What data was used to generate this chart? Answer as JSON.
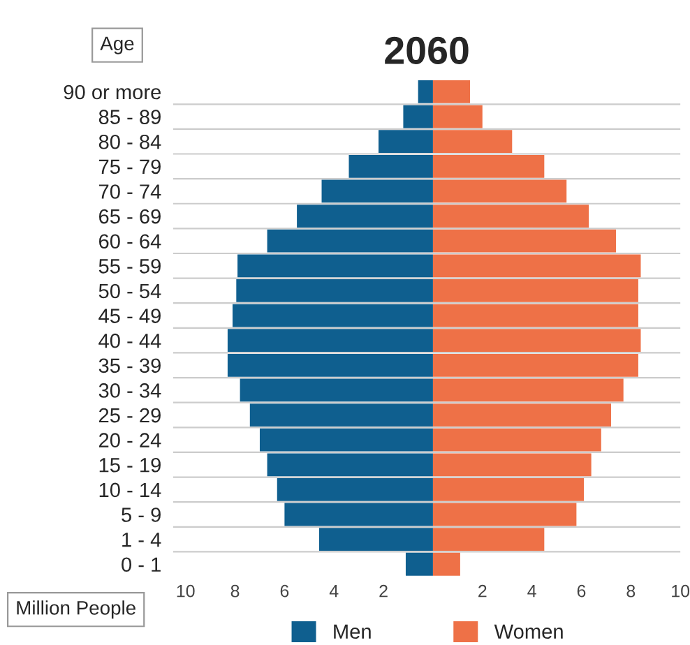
{
  "chart_data": {
    "type": "bar",
    "orientation": "horizontal",
    "stacked": true,
    "title": "2060",
    "ylabel": "Age",
    "xlabel": "Million People",
    "categories": [
      "90 or more",
      "85 - 89",
      "80 - 84",
      "75 - 79",
      "70 - 74",
      "65 - 69",
      "60 - 64",
      "55 - 59",
      "50 - 54",
      "45 - 49",
      "40 - 44",
      "35 - 39",
      "30 - 34",
      "25 - 29",
      "20 - 24",
      "15 - 19",
      "10 - 14",
      "5 - 9",
      "1 - 4",
      "0 - 1"
    ],
    "series": [
      {
        "name": "Men",
        "color": "#0f5f8f",
        "values": [
          -0.6,
          -1.2,
          -2.2,
          -3.4,
          -4.5,
          -5.5,
          -6.7,
          -7.9,
          -7.95,
          -8.1,
          -8.3,
          -8.3,
          -7.8,
          -7.4,
          -7.0,
          -6.7,
          -6.3,
          -6.0,
          -4.6,
          -1.1
        ]
      },
      {
        "name": "Women",
        "color": "#ee7147",
        "values": [
          1.5,
          2.0,
          3.2,
          4.5,
          5.4,
          6.3,
          7.4,
          8.4,
          8.3,
          8.3,
          8.4,
          8.3,
          7.7,
          7.2,
          6.8,
          6.4,
          6.1,
          5.8,
          4.5,
          1.1
        ]
      }
    ],
    "xlim": [
      -10.5,
      10
    ],
    "xticks": [
      {
        "value": -10,
        "label": "10"
      },
      {
        "value": -8,
        "label": "8"
      },
      {
        "value": -6,
        "label": "6"
      },
      {
        "value": -4,
        "label": "4"
      },
      {
        "value": -2,
        "label": "2"
      },
      2,
      4,
      6,
      8,
      10
    ],
    "grid": "y",
    "legend": "bottom"
  }
}
